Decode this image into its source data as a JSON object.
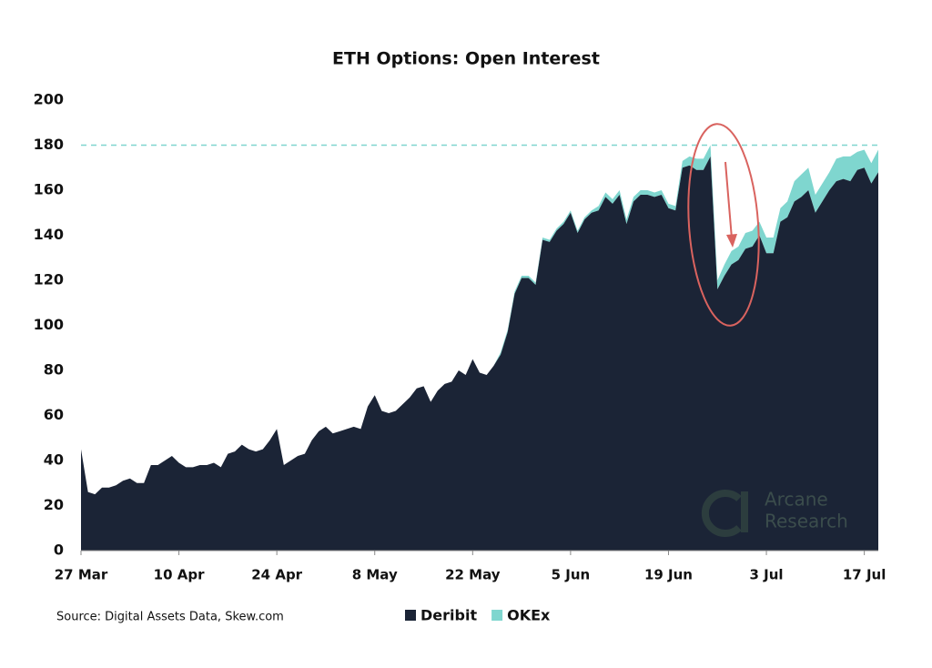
{
  "chart_data": {
    "type": "stacked_area",
    "title": "ETH Options: Open Interest",
    "source": "Source: Digital Assets Data, Skew.com",
    "watermark": [
      "Arcane",
      "Research"
    ],
    "categories": [
      "27 Mar",
      null,
      null,
      null,
      null,
      null,
      null,
      null,
      null,
      null,
      null,
      null,
      null,
      null,
      "10 Apr",
      null,
      null,
      null,
      null,
      null,
      null,
      null,
      null,
      null,
      null,
      null,
      null,
      null,
      "24 Apr",
      null,
      null,
      null,
      null,
      null,
      null,
      null,
      null,
      null,
      null,
      null,
      null,
      null,
      "8 May",
      null,
      null,
      null,
      null,
      null,
      null,
      null,
      null,
      null,
      null,
      null,
      null,
      null,
      "22 May",
      null,
      null,
      null,
      null,
      null,
      null,
      null,
      null,
      null,
      null,
      null,
      null,
      null,
      "5 Jun",
      null,
      null,
      null,
      null,
      null,
      null,
      null,
      null,
      null,
      null,
      null,
      null,
      null,
      "19 Jun",
      null,
      null,
      null,
      null,
      null,
      null,
      null,
      null,
      null,
      null,
      null,
      null,
      null,
      "3 Jul",
      null,
      null,
      null,
      null,
      null,
      null,
      null,
      null,
      null,
      null,
      null,
      null,
      null,
      "17 Jul",
      null,
      null
    ],
    "series": [
      {
        "name": "Deribit",
        "color": "#1b2436",
        "values": [
          45,
          26,
          25,
          28,
          28,
          29,
          31,
          32,
          30,
          30,
          38,
          38,
          40,
          42,
          39,
          37,
          37,
          38,
          38,
          39,
          37,
          43,
          44,
          47,
          45,
          44,
          45,
          49,
          54,
          38,
          40,
          42,
          43,
          49,
          53,
          55,
          52,
          53,
          54,
          55,
          54,
          64,
          69,
          62,
          61,
          62,
          65,
          68,
          72,
          73,
          66,
          71,
          74,
          75,
          80,
          78,
          85,
          79,
          78,
          82,
          87,
          97,
          114,
          121,
          121,
          118,
          138,
          137,
          142,
          145,
          150,
          141,
          147,
          150,
          151,
          157,
          154,
          158,
          145,
          155,
          158,
          158,
          157,
          158,
          152,
          151,
          170,
          171,
          169,
          169,
          175,
          116,
          122,
          127,
          129,
          134,
          135,
          140,
          132,
          132,
          146,
          148,
          155,
          157,
          160,
          150,
          155,
          160,
          164,
          165,
          164,
          169,
          170,
          163,
          168
        ]
      },
      {
        "name": "OKEx",
        "color": "#7fd6cf",
        "values": [
          0,
          0,
          0,
          0,
          0,
          0,
          0,
          0,
          0,
          0,
          0,
          0,
          0,
          0,
          0,
          0,
          0,
          0,
          0,
          0,
          0,
          0,
          0,
          0,
          0,
          0,
          0,
          0,
          0,
          0,
          0,
          0,
          0,
          0,
          0,
          0,
          0,
          0,
          0,
          0,
          0,
          0,
          0,
          0,
          0,
          0,
          0,
          0,
          0,
          0,
          0,
          0,
          0,
          0,
          0,
          0,
          0,
          0,
          0,
          0,
          1,
          1,
          1,
          1,
          1,
          1,
          1,
          1,
          1,
          1,
          1,
          1,
          1,
          1,
          2,
          2,
          2,
          2,
          2,
          2,
          2,
          2,
          2,
          2,
          2,
          2,
          3,
          4,
          5,
          5,
          5,
          4,
          5,
          6,
          6,
          7,
          7,
          6,
          7,
          7,
          6,
          7,
          9,
          10,
          10,
          8,
          8,
          8,
          10,
          10,
          11,
          8,
          8,
          9,
          10
        ]
      }
    ],
    "reference_line": 180,
    "reference_color": "#7fd6cf",
    "ylim": [
      0,
      200
    ],
    "yticks": [
      0,
      20,
      40,
      60,
      80,
      100,
      120,
      140,
      160,
      180,
      200
    ]
  }
}
